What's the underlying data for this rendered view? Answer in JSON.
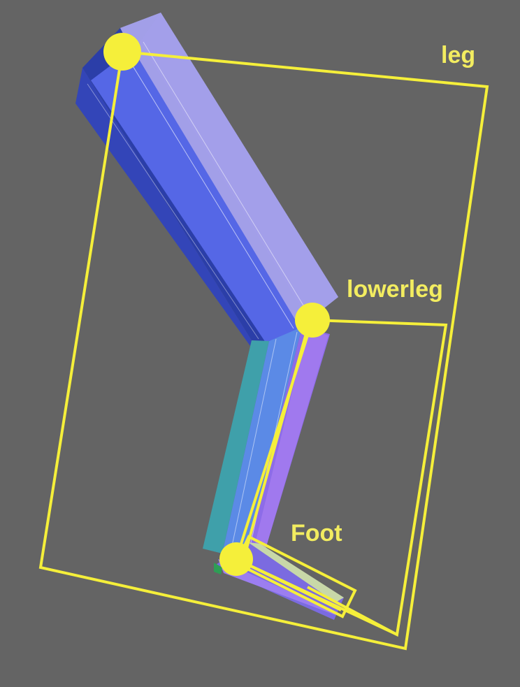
{
  "scene": {
    "background_color": "#646464",
    "highlight_color": "#f5ef3a",
    "bones": [
      {
        "label": "leg"
      },
      {
        "label": "lowerleg"
      },
      {
        "label": "Foot"
      }
    ]
  }
}
